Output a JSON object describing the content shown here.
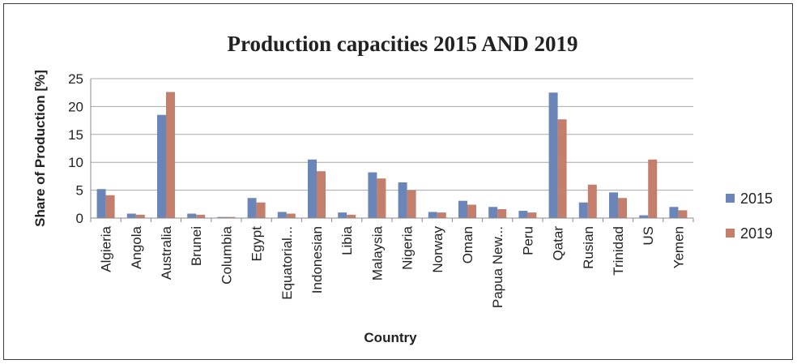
{
  "chart_data": {
    "type": "bar",
    "title": "Production  capacities 2015 AND 2019",
    "xlabel": "Country",
    "ylabel": "Share of Production  [%]",
    "ylim": [
      0,
      25
    ],
    "yticks": [
      0,
      5,
      10,
      15,
      20,
      25
    ],
    "grid": true,
    "legend_position": "right",
    "categories": [
      "Algieria",
      "Angola",
      "Australia",
      "Brunei",
      "Columbia",
      "Egypt",
      "Equatorial...",
      "Indonesian",
      "Libia",
      "Malaysia",
      "Nigeria",
      "Norway",
      "Oman",
      "Papua New...",
      "Peru",
      "Qatar",
      "Rusian",
      "Trinidad",
      "US",
      "Yemen"
    ],
    "series": [
      {
        "name": "2015",
        "color": "#6a86b8",
        "values": [
          5.2,
          0.8,
          18.5,
          0.8,
          0.2,
          3.6,
          1.1,
          10.5,
          1.0,
          8.2,
          6.4,
          1.1,
          3.1,
          2.0,
          1.3,
          22.5,
          2.8,
          4.6,
          0.5,
          2.0
        ]
      },
      {
        "name": "2019",
        "color": "#c47e6c",
        "values": [
          4.1,
          0.6,
          22.6,
          0.6,
          0.2,
          2.8,
          0.8,
          8.4,
          0.6,
          7.1,
          5.0,
          1.0,
          2.4,
          1.6,
          1.0,
          17.7,
          6.0,
          3.6,
          10.5,
          1.4
        ]
      }
    ]
  }
}
